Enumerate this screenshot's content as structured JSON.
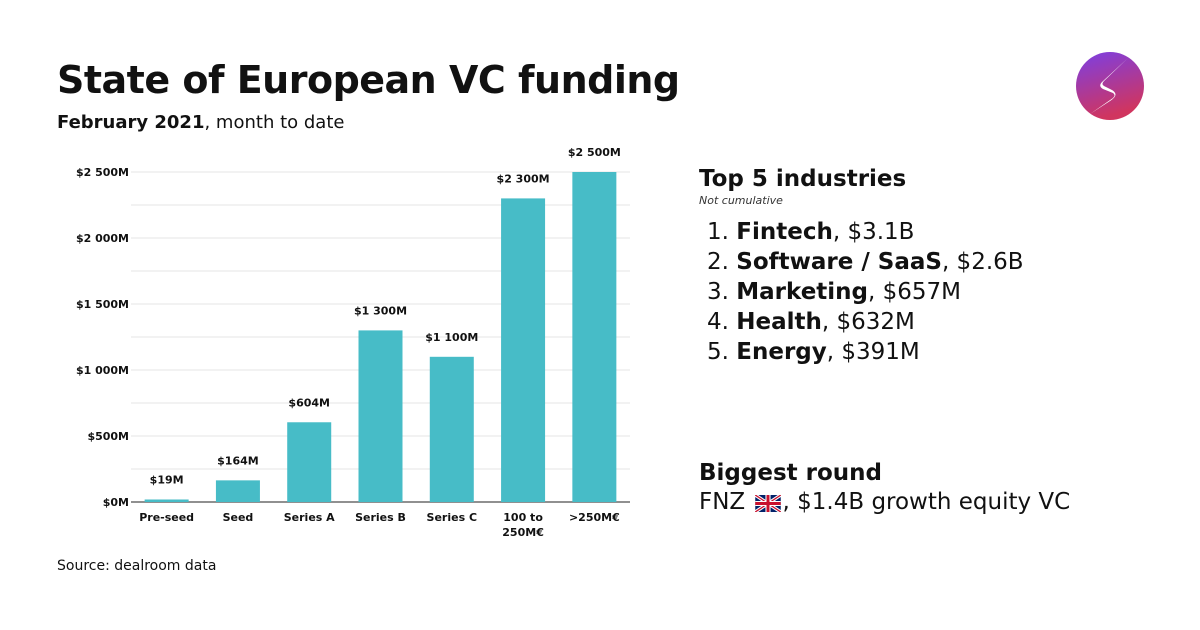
{
  "header": {
    "title": "State of European VC funding",
    "subtitle_bold": "February 2021",
    "subtitle_rest": ", month to date"
  },
  "chart_data": {
    "type": "bar",
    "categories": [
      "Pre-seed",
      "Seed",
      "Series A",
      "Series B",
      "Series C",
      "100 to 250M€",
      ">250M€"
    ],
    "category_lines": [
      [
        "Pre-seed"
      ],
      [
        "Seed"
      ],
      [
        "Series A"
      ],
      [
        "Series B"
      ],
      [
        "Series C"
      ],
      [
        "100 to",
        "250M€"
      ],
      [
        ">250M€"
      ]
    ],
    "values": [
      19,
      164,
      604,
      1300,
      1100,
      2300,
      2500
    ],
    "data_labels": [
      "$19M",
      "$164M",
      "$604M",
      "$1 300M",
      "$1 100M",
      "$2 300M",
      "$2 500M"
    ],
    "yticks": [
      0,
      500,
      1000,
      1500,
      2000,
      2500
    ],
    "ytick_labels": [
      "$0M",
      "$500M",
      "$1 000M",
      "$1 500M",
      "$2 000M",
      "$2 500M"
    ],
    "ylim": [
      0,
      2500
    ],
    "grid": true,
    "bar_color": "#47bcc7"
  },
  "source": "Source: dealroom data",
  "industries": {
    "title": "Top 5 industries",
    "note": "Not cumulative",
    "items": [
      {
        "rank": "1.",
        "name": "Fintech",
        "value": ", $3.1B"
      },
      {
        "rank": "2.",
        "name": "Software / SaaS",
        "value": ", $2.6B"
      },
      {
        "rank": "3.",
        "name": "Marketing",
        "value": ", $657M"
      },
      {
        "rank": "4.",
        "name": "Health",
        "value": ", $632M"
      },
      {
        "rank": "5.",
        "name": "Energy",
        "value": ", $391M"
      }
    ]
  },
  "biggest_round": {
    "title": "Biggest round",
    "company": "FNZ",
    "flag_icon": "uk-flag-icon",
    "detail": ", $1.4B growth equity VC"
  },
  "logo": {
    "icon": "sifted-logo-icon",
    "color_top": "#7b3fe4",
    "color_bottom": "#d0355f"
  }
}
